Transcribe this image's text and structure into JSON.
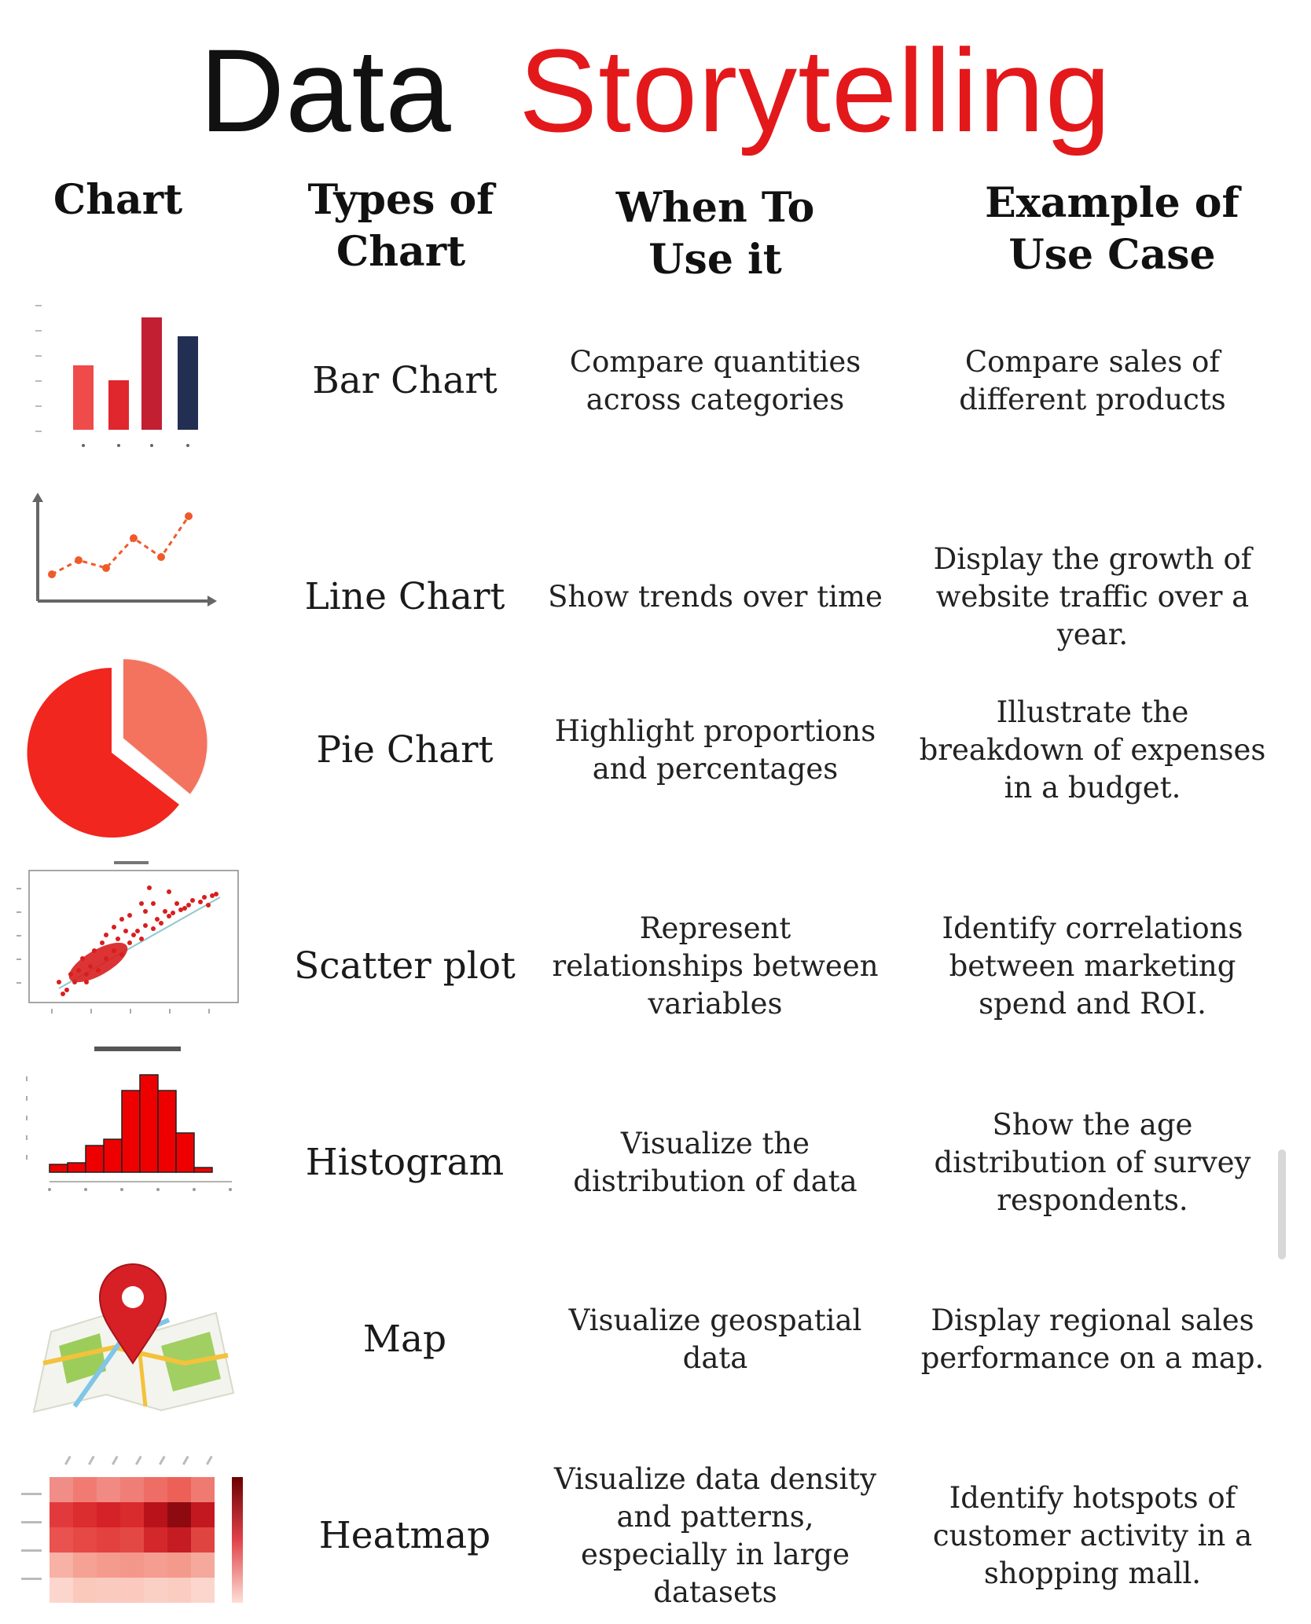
{
  "title": {
    "word1": "Data",
    "word2": "Storytelling"
  },
  "headers": {
    "chart": "Chart",
    "types": "Types of\nChart",
    "when": "When To\nUse it",
    "example": "Example of\nUse Case"
  },
  "rows": [
    {
      "type": "Bar Chart",
      "icon": "bar-chart-icon",
      "when": "Compare quantities across categories",
      "example": "Compare sales of different products"
    },
    {
      "type": "Line Chart",
      "icon": "line-chart-icon",
      "when": "Show trends over time",
      "example": "Display the growth of website traffic over a year."
    },
    {
      "type": "Pie Chart",
      "icon": "pie-chart-icon",
      "when": "Highlight proportions and percentages",
      "example": "Illustrate the breakdown of expenses in a budget."
    },
    {
      "type": "Scatter plot",
      "icon": "scatter-plot-icon",
      "when": "Represent relationships between variables",
      "example": "Identify correlations between marketing spend and ROI."
    },
    {
      "type": "Histogram",
      "icon": "histogram-icon",
      "when": "Visualize the distribution of data",
      "example": "Show the age distribution of survey respondents."
    },
    {
      "type": "Map",
      "icon": "map-pin-icon",
      "when": "Visualize geospatial data",
      "example": "Display regional sales performance on a map."
    },
    {
      "type": "Heatmap",
      "icon": "heatmap-icon",
      "when": "Visualize data density and patterns, especially in large datasets",
      "example": "Identify hotspots of customer activity in a shopping mall."
    }
  ],
  "colors": {
    "accent_red": "#e3181b",
    "dark_red": "#c21f33",
    "navy": "#232f52",
    "text": "#222222"
  }
}
